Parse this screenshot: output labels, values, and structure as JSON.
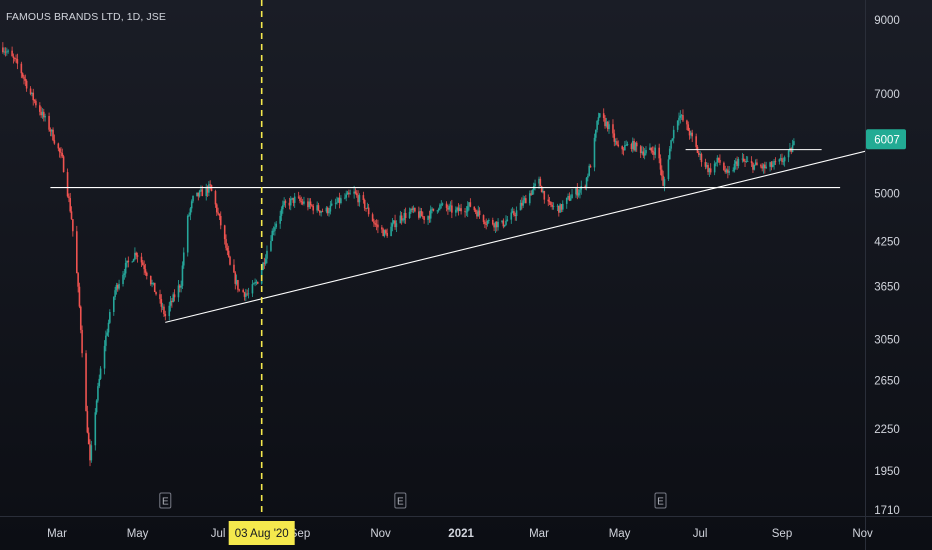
{
  "chart_data": {
    "type": "candlestick",
    "title": "FAMOUS BRANDS LTD, 1D, JSE",
    "scale": "log",
    "ylim": [
      1650,
      10000
    ],
    "y_ticks": [
      "9000",
      "7000",
      "6007",
      "5000",
      "4250",
      "3650",
      "3050",
      "2650",
      "2250",
      "1950",
      "1710"
    ],
    "y_tick_values": [
      9000,
      7000,
      6007,
      5000,
      4250,
      3650,
      3050,
      2650,
      2250,
      1950,
      1710
    ],
    "last_price": "6007",
    "x_ticks": [
      "Mar",
      "May",
      "Jul",
      "Sep",
      "Nov",
      "2021",
      "Mar",
      "May",
      "Jul",
      "Sep",
      "Nov"
    ],
    "x_tick_dates": [
      "2020-03-01",
      "2020-05-01",
      "2020-07-01",
      "2020-09-01",
      "2020-11-01",
      "2021-01-01",
      "2021-03-01",
      "2021-05-01",
      "2021-07-01",
      "2021-09-01",
      "2021-11-01"
    ],
    "crosshair": {
      "date": "2020-08-03",
      "label": "03 Aug '20"
    },
    "earnings_markers": [
      {
        "date": "2020-05-22",
        "label": "E"
      },
      {
        "date": "2020-11-16",
        "label": "E"
      },
      {
        "date": "2021-06-01",
        "label": "E"
      }
    ],
    "price_path": [
      [
        "2020-01-20",
        8200
      ],
      [
        "2020-02-01",
        7700
      ],
      [
        "2020-02-10",
        7000
      ],
      [
        "2020-02-25",
        6200
      ],
      [
        "2020-03-05",
        5600
      ],
      [
        "2020-03-12",
        4600
      ],
      [
        "2020-03-18",
        3400
      ],
      [
        "2020-03-22",
        2500
      ],
      [
        "2020-03-26",
        2000
      ],
      [
        "2020-03-30",
        2400
      ],
      [
        "2020-04-06",
        3000
      ],
      [
        "2020-04-14",
        3600
      ],
      [
        "2020-04-22",
        3900
      ],
      [
        "2020-04-30",
        4100
      ],
      [
        "2020-05-06",
        3900
      ],
      [
        "2020-05-14",
        3600
      ],
      [
        "2020-05-22",
        3300
      ],
      [
        "2020-05-28",
        3500
      ],
      [
        "2020-06-03",
        3700
      ],
      [
        "2020-06-07",
        4500
      ],
      [
        "2020-06-12",
        4900
      ],
      [
        "2020-06-18",
        5000
      ],
      [
        "2020-06-25",
        5100
      ],
      [
        "2020-07-03",
        4500
      ],
      [
        "2020-07-10",
        3900
      ],
      [
        "2020-07-17",
        3600
      ],
      [
        "2020-07-24",
        3550
      ],
      [
        "2020-08-01",
        3750
      ],
      [
        "2020-08-05",
        4000
      ],
      [
        "2020-08-12",
        4450
      ],
      [
        "2020-08-20",
        4800
      ],
      [
        "2020-08-28",
        4900
      ],
      [
        "2020-09-08",
        4800
      ],
      [
        "2020-09-20",
        4700
      ],
      [
        "2020-10-03",
        4900
      ],
      [
        "2020-10-12",
        5000
      ],
      [
        "2020-10-20",
        4800
      ],
      [
        "2020-10-28",
        4500
      ],
      [
        "2020-11-05",
        4350
      ],
      [
        "2020-11-15",
        4600
      ],
      [
        "2020-11-25",
        4700
      ],
      [
        "2020-12-05",
        4600
      ],
      [
        "2020-12-15",
        4800
      ],
      [
        "2020-12-28",
        4700
      ],
      [
        "2021-01-08",
        4800
      ],
      [
        "2021-01-20",
        4550
      ],
      [
        "2021-02-01",
        4500
      ],
      [
        "2021-02-12",
        4700
      ],
      [
        "2021-02-22",
        5000
      ],
      [
        "2021-03-01",
        5200
      ],
      [
        "2021-03-08",
        4800
      ],
      [
        "2021-03-17",
        4750
      ],
      [
        "2021-03-27",
        5000
      ],
      [
        "2021-04-04",
        5100
      ],
      [
        "2021-04-10",
        5600
      ],
      [
        "2021-04-15",
        6500
      ],
      [
        "2021-04-22",
        6300
      ],
      [
        "2021-04-30",
        5800
      ],
      [
        "2021-05-10",
        5900
      ],
      [
        "2021-05-20",
        5750
      ],
      [
        "2021-05-30",
        5800
      ],
      [
        "2021-06-03",
        5100
      ],
      [
        "2021-06-10",
        6100
      ],
      [
        "2021-06-15",
        6550
      ],
      [
        "2021-06-22",
        6200
      ],
      [
        "2021-06-30",
        5700
      ],
      [
        "2021-07-08",
        5400
      ],
      [
        "2021-07-15",
        5600
      ],
      [
        "2021-07-22",
        5300
      ],
      [
        "2021-07-30",
        5600
      ],
      [
        "2021-08-10",
        5500
      ],
      [
        "2021-08-20",
        5450
      ],
      [
        "2021-08-30",
        5550
      ],
      [
        "2021-09-06",
        5700
      ],
      [
        "2021-09-12",
        6007
      ]
    ],
    "trend_lines": [
      {
        "name": "horizontal",
        "from": [
          "2020-02-25",
          5100
        ],
        "to": [
          "2021-10-15",
          5100
        ]
      },
      {
        "name": "upper-right-horizontal",
        "from": [
          "2021-06-20",
          5800
        ],
        "to": [
          "2021-10-01",
          5800
        ]
      },
      {
        "name": "rising-support",
        "from": [
          "2020-05-22",
          3230
        ],
        "to": [
          "2021-11-05",
          5780
        ]
      }
    ],
    "colors": {
      "up": "#26a69a",
      "down": "#ef5350",
      "crosshair": "#f5e94d",
      "last_price_bg": "#22ab94"
    }
  }
}
